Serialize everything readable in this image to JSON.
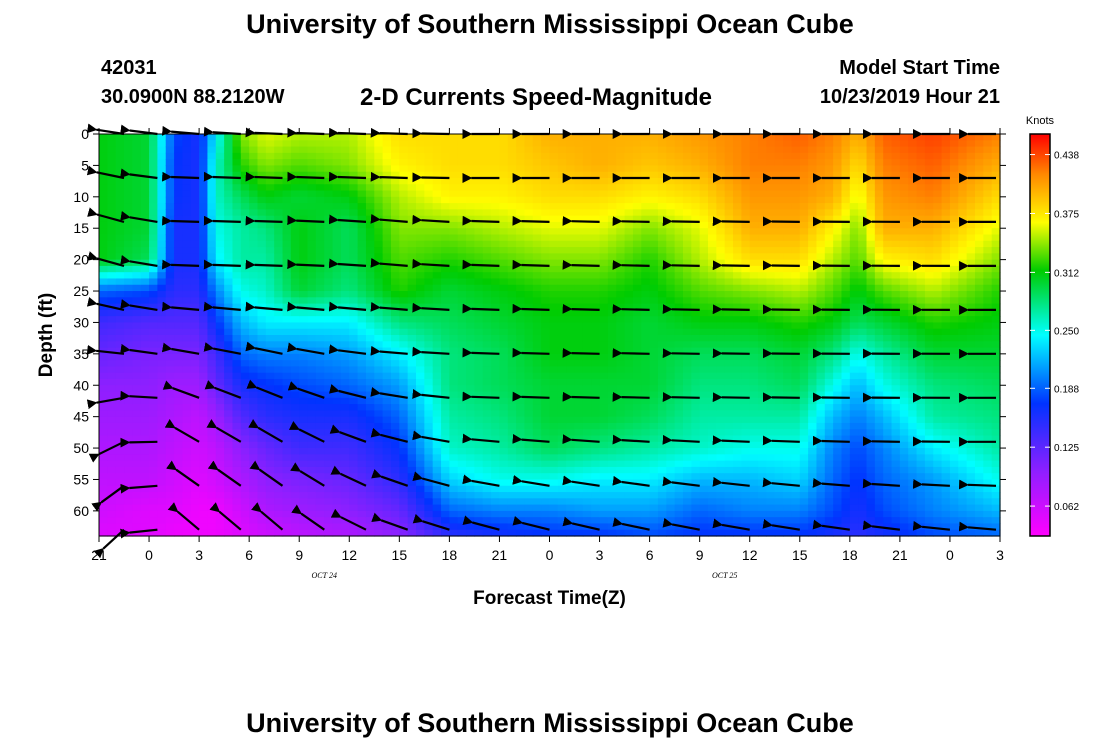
{
  "header": {
    "title": "University of Southern Mississippi Ocean Cube",
    "station_id": "42031",
    "station_location": "30.0900N 88.2120W",
    "plot_title": "2-D Currents Speed-Magnitude",
    "model_start_label": "Model Start Time",
    "model_start_value": "10/23/2019 Hour 21"
  },
  "footer": {
    "title": "University of Southern Mississippi Ocean Cube"
  },
  "chart_data": {
    "type": "heatmap",
    "title": "2-D Currents Speed-Magnitude",
    "xlabel": "Forecast Time(Z)",
    "ylabel": "Depth (ft)",
    "colorbar_label": "Knots",
    "x_tick_labels": [
      "21",
      "0",
      "3",
      "6",
      "9",
      "12",
      "15",
      "18",
      "21",
      "0",
      "3",
      "6",
      "9",
      "12",
      "15",
      "18",
      "21",
      "0",
      "3"
    ],
    "x_hours": [
      0,
      3,
      6,
      9,
      12,
      15,
      18,
      21,
      24,
      27,
      30,
      33,
      36,
      39,
      42,
      45,
      48,
      51,
      54
    ],
    "date_labels": [
      {
        "text": "OCT 24",
        "hour": 13.5
      },
      {
        "text": "OCT 25",
        "hour": 37.5
      }
    ],
    "y_ticks": [
      0,
      5,
      10,
      15,
      20,
      25,
      30,
      35,
      40,
      45,
      50,
      55,
      60
    ],
    "ylim": [
      0,
      64
    ],
    "xlim": [
      0,
      54
    ],
    "colorbar_ticks": [
      "0.438",
      "0.375",
      "0.312",
      "0.250",
      "0.188",
      "0.125",
      "0.062"
    ],
    "colorbar_range": [
      0.03,
      0.46
    ],
    "depths": [
      0,
      5,
      10,
      15,
      20,
      25,
      30,
      35,
      40,
      45,
      50,
      55,
      60,
      64
    ],
    "speed_profiles": [
      {
        "hour": 0,
        "speeds": [
          0.31,
          0.31,
          0.31,
          0.31,
          0.31,
          0.19,
          0.14,
          0.12,
          0.1,
          0.09,
          0.08,
          0.07,
          0.06,
          0.05
        ]
      },
      {
        "hour": 3,
        "speeds": [
          0.3,
          0.3,
          0.3,
          0.3,
          0.29,
          0.18,
          0.13,
          0.11,
          0.1,
          0.09,
          0.08,
          0.07,
          0.05,
          0.05
        ]
      },
      {
        "hour": 4.5,
        "speeds": [
          0.18,
          0.17,
          0.17,
          0.16,
          0.16,
          0.15,
          0.13,
          0.11,
          0.09,
          0.08,
          0.07,
          0.06,
          0.05,
          0.04
        ]
      },
      {
        "hour": 6,
        "speeds": [
          0.16,
          0.16,
          0.16,
          0.16,
          0.16,
          0.15,
          0.13,
          0.11,
          0.09,
          0.07,
          0.06,
          0.05,
          0.04,
          0.04
        ]
      },
      {
        "hour": 7,
        "speeds": [
          0.24,
          0.26,
          0.26,
          0.25,
          0.24,
          0.2,
          0.17,
          0.14,
          0.12,
          0.09,
          0.07,
          0.06,
          0.04,
          0.04
        ]
      },
      {
        "hour": 8.5,
        "speeds": [
          0.34,
          0.32,
          0.29,
          0.27,
          0.27,
          0.25,
          0.22,
          0.19,
          0.16,
          0.13,
          0.1,
          0.08,
          0.06,
          0.05
        ]
      },
      {
        "hour": 10,
        "speeds": [
          0.36,
          0.34,
          0.31,
          0.28,
          0.27,
          0.26,
          0.24,
          0.2,
          0.17,
          0.15,
          0.12,
          0.1,
          0.08,
          0.06
        ]
      },
      {
        "hour": 12,
        "speeds": [
          0.35,
          0.33,
          0.3,
          0.31,
          0.31,
          0.3,
          0.24,
          0.2,
          0.18,
          0.16,
          0.14,
          0.11,
          0.09,
          0.07
        ]
      },
      {
        "hour": 15,
        "speeds": [
          0.35,
          0.34,
          0.31,
          0.29,
          0.29,
          0.28,
          0.24,
          0.21,
          0.19,
          0.16,
          0.14,
          0.12,
          0.1,
          0.08
        ]
      },
      {
        "hour": 18,
        "speeds": [
          0.38,
          0.37,
          0.35,
          0.34,
          0.33,
          0.32,
          0.28,
          0.24,
          0.21,
          0.19,
          0.17,
          0.15,
          0.12,
          0.1
        ]
      },
      {
        "hour": 21,
        "speeds": [
          0.38,
          0.38,
          0.37,
          0.34,
          0.32,
          0.3,
          0.29,
          0.28,
          0.28,
          0.27,
          0.26,
          0.23,
          0.19,
          0.15
        ]
      },
      {
        "hour": 24,
        "speeds": [
          0.38,
          0.38,
          0.37,
          0.35,
          0.33,
          0.31,
          0.3,
          0.29,
          0.29,
          0.28,
          0.27,
          0.25,
          0.2,
          0.16
        ]
      },
      {
        "hour": 27,
        "speeds": [
          0.4,
          0.39,
          0.38,
          0.36,
          0.34,
          0.32,
          0.31,
          0.31,
          0.3,
          0.3,
          0.29,
          0.25,
          0.2,
          0.17
        ]
      },
      {
        "hour": 30,
        "speeds": [
          0.4,
          0.4,
          0.38,
          0.36,
          0.34,
          0.32,
          0.31,
          0.31,
          0.3,
          0.3,
          0.28,
          0.24,
          0.21,
          0.17
        ]
      },
      {
        "hour": 33,
        "speeds": [
          0.4,
          0.39,
          0.37,
          0.34,
          0.32,
          0.31,
          0.3,
          0.3,
          0.3,
          0.29,
          0.27,
          0.24,
          0.21,
          0.18
        ]
      },
      {
        "hour": 36,
        "speeds": [
          0.41,
          0.4,
          0.38,
          0.36,
          0.35,
          0.33,
          0.31,
          0.29,
          0.28,
          0.27,
          0.26,
          0.22,
          0.19,
          0.17
        ]
      },
      {
        "hour": 39,
        "speeds": [
          0.42,
          0.42,
          0.41,
          0.4,
          0.38,
          0.34,
          0.31,
          0.29,
          0.28,
          0.27,
          0.25,
          0.22,
          0.2,
          0.17
        ]
      },
      {
        "hour": 42,
        "speeds": [
          0.43,
          0.42,
          0.41,
          0.4,
          0.38,
          0.35,
          0.32,
          0.3,
          0.29,
          0.27,
          0.25,
          0.23,
          0.2,
          0.17
        ]
      },
      {
        "hour": 44,
        "speeds": [
          0.42,
          0.41,
          0.4,
          0.37,
          0.35,
          0.33,
          0.31,
          0.28,
          0.25,
          0.22,
          0.2,
          0.19,
          0.18,
          0.16
        ]
      },
      {
        "hour": 45.5,
        "speeds": [
          0.4,
          0.38,
          0.36,
          0.34,
          0.33,
          0.31,
          0.29,
          0.25,
          0.22,
          0.2,
          0.18,
          0.17,
          0.16,
          0.15
        ]
      },
      {
        "hour": 47,
        "speeds": [
          0.43,
          0.42,
          0.41,
          0.4,
          0.37,
          0.33,
          0.3,
          0.27,
          0.25,
          0.22,
          0.2,
          0.19,
          0.18,
          0.16
        ]
      },
      {
        "hour": 50,
        "speeds": [
          0.44,
          0.43,
          0.42,
          0.4,
          0.38,
          0.35,
          0.32,
          0.3,
          0.28,
          0.27,
          0.24,
          0.21,
          0.2,
          0.18
        ]
      },
      {
        "hour": 54,
        "speeds": [
          0.42,
          0.4,
          0.38,
          0.36,
          0.34,
          0.32,
          0.31,
          0.3,
          0.29,
          0.28,
          0.27,
          0.25,
          0.22,
          0.19
        ]
      }
    ],
    "arrow_hours": [
      1.5,
      3.5,
      6,
      8.5,
      11,
      13.5,
      16,
      18.5,
      21,
      24,
      27,
      30,
      33,
      36,
      39,
      42,
      45,
      48,
      51,
      54
    ],
    "arrow_depths": [
      0,
      7,
      14,
      21,
      28,
      35,
      42,
      49,
      56,
      63
    ],
    "arrow_direction_profiles": [
      {
        "hour": 0,
        "directions_deg": [
          170,
          165,
          160,
          160,
          165,
          175,
          200,
          225,
          240,
          250
        ]
      },
      {
        "hour": 6,
        "directions_deg": [
          175,
          178,
          178,
          178,
          175,
          170,
          160,
          150,
          145,
          140
        ]
      },
      {
        "hour": 12,
        "directions_deg": [
          178,
          178,
          178,
          178,
          175,
          168,
          158,
          150,
          145,
          140
        ]
      },
      {
        "hour": 18,
        "directions_deg": [
          178,
          178,
          175,
          175,
          175,
          175,
          170,
          165,
          160,
          160
        ]
      },
      {
        "hour": 24,
        "directions_deg": [
          180,
          180,
          178,
          178,
          178,
          178,
          178,
          175,
          170,
          165
        ]
      },
      {
        "hour": 54,
        "directions_deg": [
          180,
          180,
          180,
          180,
          180,
          180,
          180,
          180,
          178,
          175
        ]
      }
    ]
  }
}
